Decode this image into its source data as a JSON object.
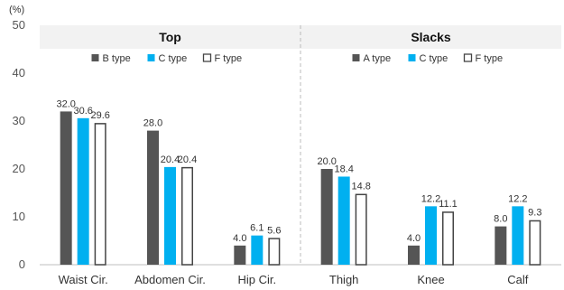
{
  "chart_data": {
    "type": "bar",
    "unit_label": "(%)",
    "ylim": [
      0,
      50
    ],
    "yticks": [
      0,
      10,
      20,
      30,
      40,
      50
    ],
    "grid": false,
    "colors": {
      "dark": "#555555",
      "blue": "#00b0f0",
      "hollow": "#ffffff",
      "hollow_stroke": "#444444",
      "header_bg": "#f2f2f2",
      "divider": "#bbbbbb"
    },
    "panels": [
      {
        "title": "Top",
        "legend": [
          "B type",
          "C type",
          "F type"
        ],
        "categories": [
          "Waist Cir.",
          "Abdomen Cir.",
          "Hip Cir."
        ],
        "series": [
          {
            "name": "B type",
            "style": "dark",
            "values": [
              32.0,
              28.0,
              4.0
            ],
            "labels": [
              "32.0",
              "28.0",
              "4.0"
            ]
          },
          {
            "name": "C type",
            "style": "blue",
            "values": [
              30.6,
              20.4,
              6.1
            ],
            "labels": [
              "30.6",
              "20.4",
              "6.1"
            ]
          },
          {
            "name": "F type",
            "style": "hollow",
            "values": [
              29.6,
              20.4,
              5.6
            ],
            "labels": [
              "29.6",
              "20.4",
              "5.6"
            ]
          }
        ]
      },
      {
        "title": "Slacks",
        "legend": [
          "A type",
          "C type",
          "F type"
        ],
        "categories": [
          "Thigh",
          "Knee",
          "Calf"
        ],
        "series": [
          {
            "name": "A type",
            "style": "dark",
            "values": [
              20.0,
              4.0,
              8.0
            ],
            "labels": [
              "20.0",
              "4.0",
              "8.0"
            ]
          },
          {
            "name": "C type",
            "style": "blue",
            "values": [
              18.4,
              12.2,
              12.2
            ],
            "labels": [
              "18.4",
              "12.2",
              "12.2"
            ]
          },
          {
            "name": "F type",
            "style": "hollow",
            "values": [
              14.8,
              11.1,
              9.3
            ],
            "labels": [
              "14.8",
              "11.1",
              "9.3"
            ]
          }
        ]
      }
    ]
  }
}
